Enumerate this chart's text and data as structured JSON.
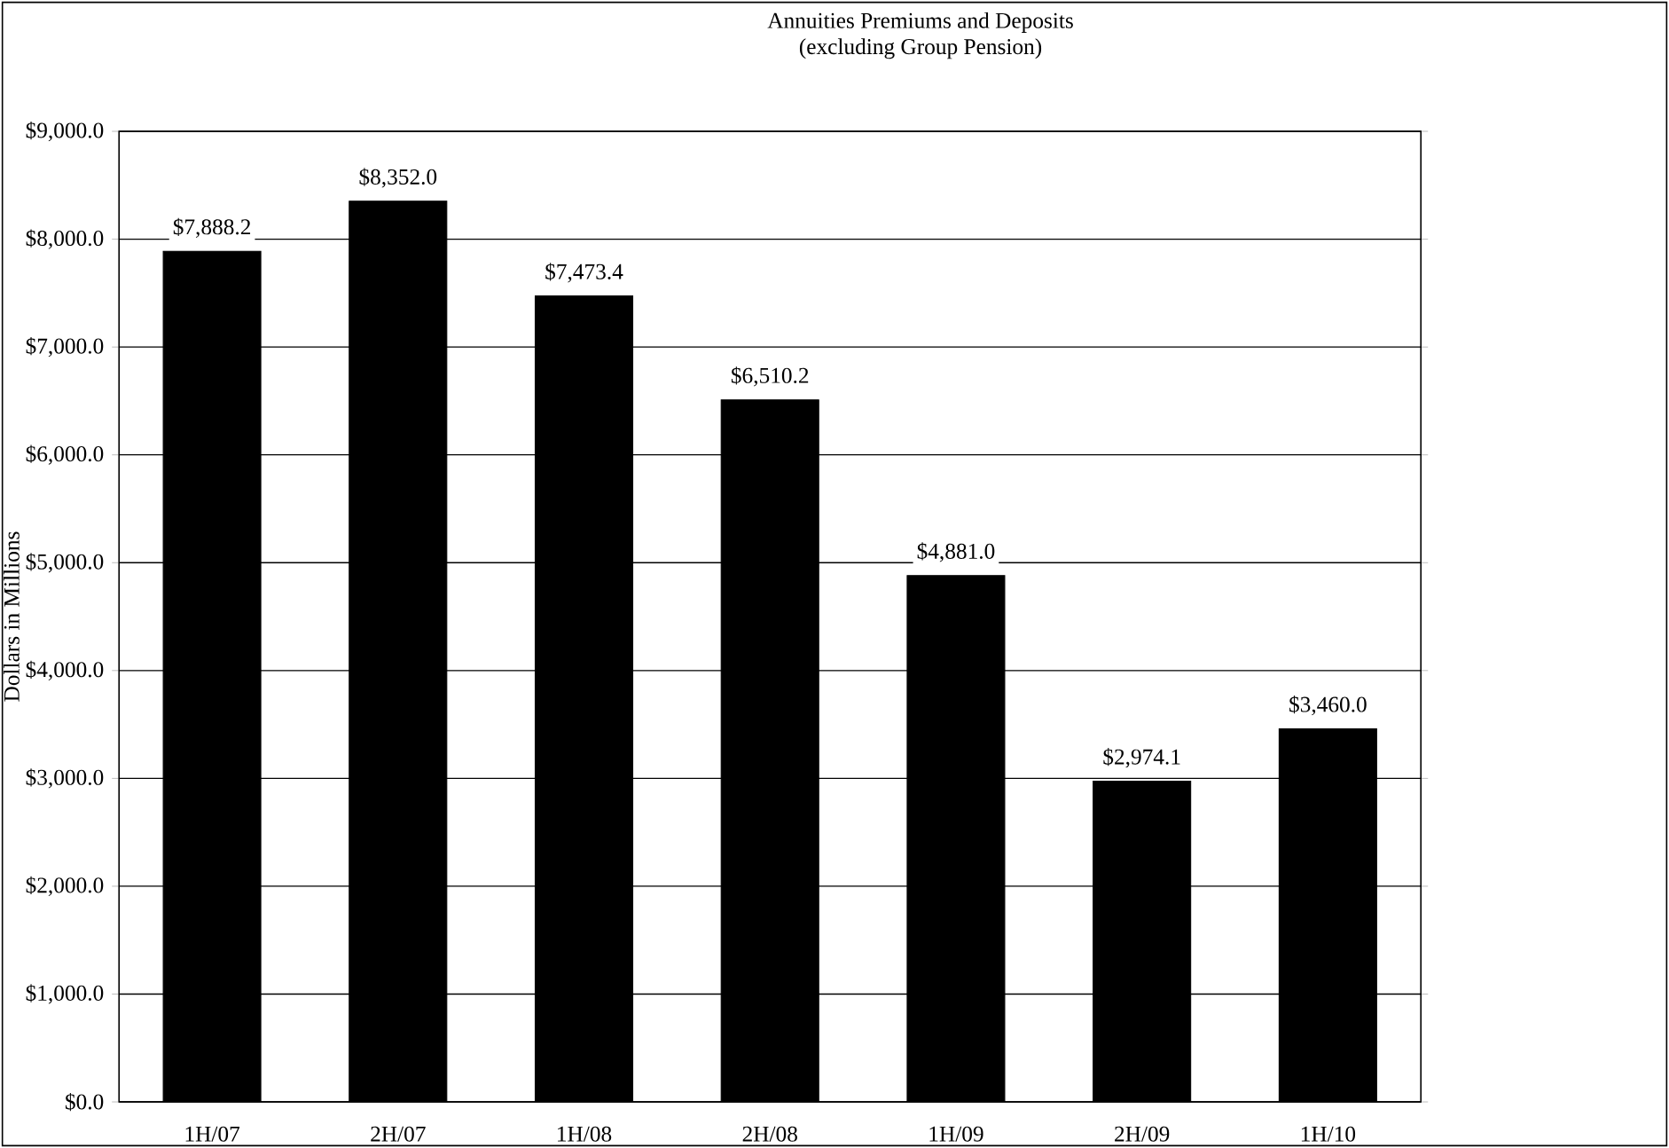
{
  "chart_data": {
    "type": "bar",
    "title": "Annuities Premiums and Deposits",
    "subtitle": "(excluding Group Pension)",
    "ylabel": "Dollars in Millions",
    "categories": [
      "1H/07",
      "2H/07",
      "1H/08",
      "2H/08",
      "1H/09",
      "2H/09",
      "1H/10"
    ],
    "values": [
      7888.2,
      8352.0,
      7473.4,
      6510.2,
      4881.0,
      2974.1,
      3460.0
    ],
    "value_labels": [
      "$7,888.2",
      "$8,352.0",
      "$7,473.4",
      "$6,510.2",
      "$4,881.0",
      "$2,974.1",
      "$3,460.0"
    ],
    "color": "#000000",
    "ylim": [
      0,
      9000
    ],
    "yticks": [
      {
        "value": 0,
        "label": "$0.0"
      },
      {
        "value": 1000,
        "label": "$1,000.0"
      },
      {
        "value": 2000,
        "label": "$2,000.0"
      },
      {
        "value": 3000,
        "label": "$3,000.0"
      },
      {
        "value": 4000,
        "label": "$4,000.0"
      },
      {
        "value": 5000,
        "label": "$5,000.0"
      },
      {
        "value": 6000,
        "label": "$6,000.0"
      },
      {
        "value": 7000,
        "label": "$7,000.0"
      },
      {
        "value": 8000,
        "label": "$8,000.0"
      },
      {
        "value": 9000,
        "label": "$9,000.0"
      }
    ],
    "grid": "y"
  }
}
